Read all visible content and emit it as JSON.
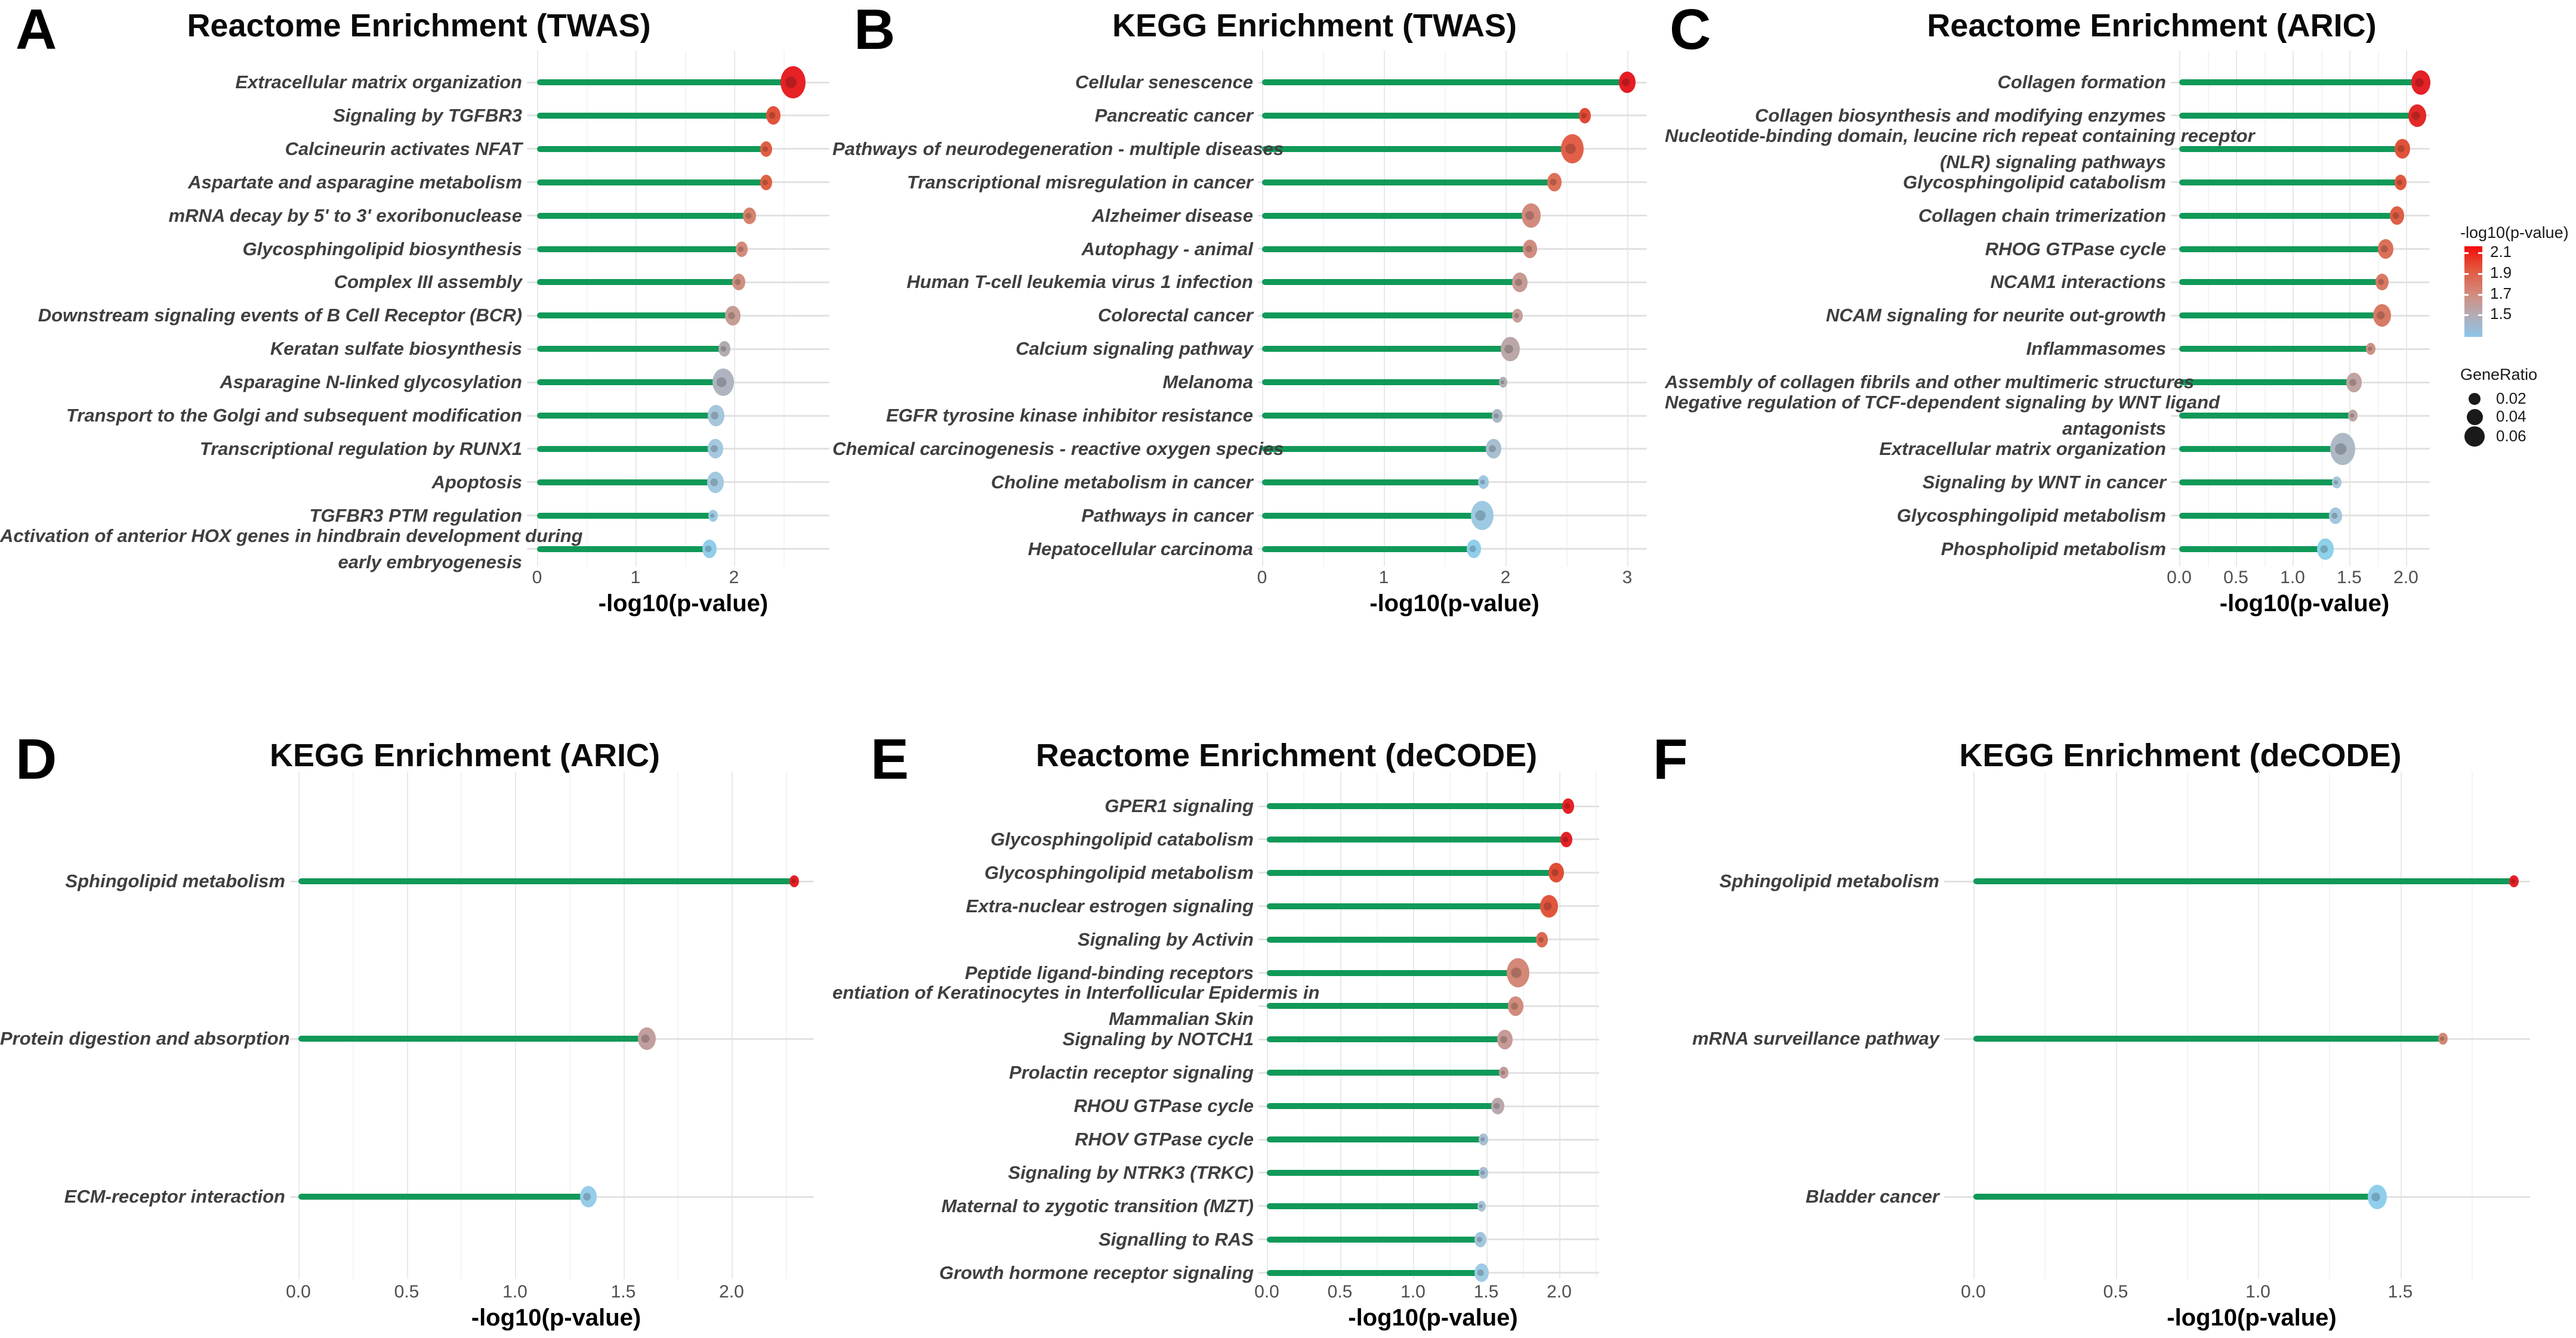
{
  "style": {
    "background": "#ffffff",
    "stem_color": "#109958",
    "row_line_color": "#e2e2e2",
    "grid_major_color": "#e9e9e9",
    "grid_minor_color": "#f4f4f4",
    "label_color": "#3f3f3f",
    "tick_color": "#4f4f4f"
  },
  "legend": {
    "color_title": "-log10(p-value)",
    "color_ticks": [
      "2.1",
      "1.9",
      "1.7",
      "1.5"
    ],
    "gradient_stops": [
      "#f10c0c",
      "#e4563c",
      "#cf8f84",
      "#b9a6ad",
      "#8cc6e9"
    ],
    "size_title": "GeneRatio",
    "size_items": [
      {
        "label": "0.02",
        "d": 20
      },
      {
        "label": "0.04",
        "d": 27
      },
      {
        "label": "0.06",
        "d": 34
      }
    ],
    "dot_color": "#1a1a1a"
  },
  "chart_data": [
    {
      "type": "lollipop",
      "letter": "A",
      "title": "Reactome Enrichment (TWAS)",
      "xlabel": "-log10(p-value)",
      "xlim": [
        0,
        2.97
      ],
      "ticks": [
        {
          "v": 0,
          "label": "0"
        },
        {
          "v": 1,
          "label": "1"
        },
        {
          "v": 2,
          "label": "2"
        }
      ],
      "rows": [
        {
          "label": "Extracellular matrix organization",
          "value": 2.6,
          "color": "#e62225",
          "size": 42
        },
        {
          "label": "Signaling by TGFBR3",
          "value": 2.4,
          "color": "#e1543a",
          "size": 24
        },
        {
          "label": "Calcineurin activates NFAT",
          "value": 2.33,
          "color": "#df5f43",
          "size": 20
        },
        {
          "label": "Aspartate and asparagine metabolism",
          "value": 2.33,
          "color": "#df6045",
          "size": 20
        },
        {
          "label": "mRNA decay by 5' to 3' exoribonuclease",
          "value": 2.16,
          "color": "#d7826e",
          "size": 22
        },
        {
          "label": "Glycosphingolipid biosynthesis",
          "value": 2.08,
          "color": "#d28b7a",
          "size": 20
        },
        {
          "label": "Complex III assembly",
          "value": 2.05,
          "color": "#cf9082",
          "size": 22
        },
        {
          "label": "Downstream signaling events of B Cell Receptor (BCR)",
          "value": 1.99,
          "color": "#c69d94",
          "size": 26
        },
        {
          "label": "Keratan sulfate biosynthesis",
          "value": 1.9,
          "color": "#b3abb2",
          "size": 20
        },
        {
          "label": "Asparagine N-linked glycosylation",
          "value": 1.89,
          "color": "#afb4c0",
          "size": 36
        },
        {
          "label": "Transport to the Golgi and subsequent modification",
          "value": 1.82,
          "color": "#a6c6dc",
          "size": 28
        },
        {
          "label": "Transcriptional regulation by RUNX1",
          "value": 1.81,
          "color": "#a4c8de",
          "size": 26
        },
        {
          "label": "Apoptosis",
          "value": 1.81,
          "color": "#a3c9e0",
          "size": 28
        },
        {
          "label": "TGFBR3 PTM regulation",
          "value": 1.79,
          "color": "#9ccbe4",
          "size": 16
        },
        {
          "label": "Activation of anterior HOX genes in hindbrain development during\nearly embryogenesis",
          "value": 1.75,
          "color": "#92cdea",
          "size": 24
        }
      ]
    },
    {
      "type": "lollipop",
      "letter": "B",
      "title": "KEGG Enrichment (TWAS)",
      "xlabel": "-log10(p-value)",
      "xlim": [
        0,
        3.16
      ],
      "ticks": [
        {
          "v": 0,
          "label": "0"
        },
        {
          "v": 1,
          "label": "1"
        },
        {
          "v": 2,
          "label": "2"
        },
        {
          "v": 3,
          "label": "3"
        }
      ],
      "rows": [
        {
          "label": "Cellular senescence",
          "value": 3.0,
          "color": "#e31d23",
          "size": 28
        },
        {
          "label": "Pancreatic cancer",
          "value": 2.65,
          "color": "#e04a33",
          "size": 20
        },
        {
          "label": "Pathways of neurodegeneration - multiple diseases",
          "value": 2.55,
          "color": "#e2604a",
          "size": 38
        },
        {
          "label": "Transcriptional misregulation in cancer",
          "value": 2.4,
          "color": "#dd7058",
          "size": 24
        },
        {
          "label": "Alzheimer disease",
          "value": 2.21,
          "color": "#d18a7d",
          "size": 32
        },
        {
          "label": "Autophagy - animal",
          "value": 2.2,
          "color": "#cf8d80",
          "size": 24
        },
        {
          "label": "Human T-cell leukemia virus 1 infection",
          "value": 2.12,
          "color": "#c79a94",
          "size": 26
        },
        {
          "label": "Colorectal cancer",
          "value": 2.1,
          "color": "#c49e98",
          "size": 18
        },
        {
          "label": "Calcium signaling pathway",
          "value": 2.04,
          "color": "#bba7a7",
          "size": 32
        },
        {
          "label": "Melanoma",
          "value": 1.98,
          "color": "#b2aeb5",
          "size": 14
        },
        {
          "label": "EGFR tyrosine kinase inhibitor resistance",
          "value": 1.93,
          "color": "#aab6c2",
          "size": 18
        },
        {
          "label": "Chemical carcinogenesis - reactive oxygen species",
          "value": 1.9,
          "color": "#a7bfd0",
          "size": 26
        },
        {
          "label": "Choline metabolism in cancer",
          "value": 1.82,
          "color": "#a0c8e0",
          "size": 18
        },
        {
          "label": "Pathways in cancer",
          "value": 1.81,
          "color": "#9dcae2",
          "size": 38
        },
        {
          "label": "Hepatocellular carcinoma",
          "value": 1.74,
          "color": "#8ecfeb",
          "size": 24
        }
      ]
    },
    {
      "type": "lollipop",
      "letter": "C",
      "title": "Reactome Enrichment (ARIC)",
      "xlabel": "-log10(p-value)",
      "xlim": [
        0,
        2.21
      ],
      "ticks": [
        {
          "v": 0,
          "label": "0.0"
        },
        {
          "v": 0.5,
          "label": "0.5"
        },
        {
          "v": 1,
          "label": "1.0"
        },
        {
          "v": 1.5,
          "label": "1.5"
        },
        {
          "v": 2,
          "label": "2.0"
        }
      ],
      "rows": [
        {
          "label": "Collagen formation",
          "value": 2.13,
          "color": "#e32126",
          "size": 32
        },
        {
          "label": "Collagen biosynthesis and modifying enzymes",
          "value": 2.1,
          "color": "#e22a28",
          "size": 30
        },
        {
          "label": "Nucleotide-binding domain, leucine rich repeat containing receptor\n(NLR) signaling pathways",
          "value": 1.97,
          "color": "#e0523a",
          "size": 26
        },
        {
          "label": "Glycosphingolipid catabolism",
          "value": 1.95,
          "color": "#df573e",
          "size": 20
        },
        {
          "label": "Collagen chain trimerization",
          "value": 1.92,
          "color": "#de5f45",
          "size": 24
        },
        {
          "label": "RHOG GTPase cycle",
          "value": 1.82,
          "color": "#db7058",
          "size": 26
        },
        {
          "label": "NCAM1 interactions",
          "value": 1.79,
          "color": "#d87a64",
          "size": 22
        },
        {
          "label": "NCAM signaling for neurite out-growth",
          "value": 1.79,
          "color": "#d87a64",
          "size": 30
        },
        {
          "label": "Inflammasomes",
          "value": 1.69,
          "color": "#cc9184",
          "size": 16
        },
        {
          "label": "Assembly of collagen fibrils and other multimeric structures",
          "value": 1.54,
          "color": "#bfa4a2",
          "size": 26
        },
        {
          "label": "Negative regulation of TCF-dependent signaling by WNT ligand\nantagonists",
          "value": 1.53,
          "color": "#bca6a6",
          "size": 16
        },
        {
          "label": "Extracellular matrix organization",
          "value": 1.44,
          "color": "#aeb9c6",
          "size": 42
        },
        {
          "label": "Signaling by WNT in cancer",
          "value": 1.39,
          "color": "#a5c5da",
          "size": 16
        },
        {
          "label": "Glycosphingolipid metabolism",
          "value": 1.38,
          "color": "#a3c7dd",
          "size": 22
        },
        {
          "label": "Phospholipid metabolism",
          "value": 1.29,
          "color": "#8fd0ea",
          "size": 28
        }
      ]
    },
    {
      "type": "lollipop",
      "letter": "D",
      "title": "KEGG Enrichment (ARIC)",
      "xlabel": "-log10(p-value)",
      "xlim": [
        0,
        2.38
      ],
      "ticks": [
        {
          "v": 0,
          "label": "0.0"
        },
        {
          "v": 0.5,
          "label": "0.5"
        },
        {
          "v": 1,
          "label": "1.0"
        },
        {
          "v": 1.5,
          "label": "1.5"
        },
        {
          "v": 2,
          "label": "2.0"
        }
      ],
      "rows": [
        {
          "label": "Sphingolipid metabolism",
          "value": 2.29,
          "color": "#e31f24",
          "size": 16
        },
        {
          "label": "Protein digestion and absorption",
          "value": 1.61,
          "color": "#c09f9d",
          "size": 30
        },
        {
          "label": "ECM-receptor interaction",
          "value": 1.34,
          "color": "#97cde8",
          "size": 28
        }
      ]
    },
    {
      "type": "lollipop",
      "letter": "E",
      "title": "Reactome Enrichment (deCODE)",
      "xlabel": "-log10(p-value)",
      "xlim": [
        0,
        2.27
      ],
      "ticks": [
        {
          "v": 0,
          "label": "0.0"
        },
        {
          "v": 0.5,
          "label": "0.5"
        },
        {
          "v": 1,
          "label": "1.0"
        },
        {
          "v": 1.5,
          "label": "1.5"
        },
        {
          "v": 2,
          "label": "2.0"
        }
      ],
      "rows": [
        {
          "label": "GPER1 signaling",
          "value": 2.06,
          "color": "#e32126",
          "size": 20
        },
        {
          "label": "Glycosphingolipid catabolism",
          "value": 2.05,
          "color": "#e32126",
          "size": 20
        },
        {
          "label": "Glycosphingolipid metabolism",
          "value": 1.98,
          "color": "#e14e36",
          "size": 26
        },
        {
          "label": "Extra-nuclear estrogen signaling",
          "value": 1.93,
          "color": "#e0563d",
          "size": 30
        },
        {
          "label": "Signaling by Activin",
          "value": 1.88,
          "color": "#dc6a52",
          "size": 20
        },
        {
          "label": "Peptide ligand-binding receptors",
          "value": 1.72,
          "color": "#d38878",
          "size": 38
        },
        {
          "label": "entiation of Keratinocytes in Interfollicular Epidermis in\nMammalian Skin",
          "value": 1.7,
          "color": "#d18c7d",
          "size": 26
        },
        {
          "label": "Signaling by NOTCH1",
          "value": 1.63,
          "color": "#c79a97",
          "size": 26
        },
        {
          "label": "Prolactin receptor signaling",
          "value": 1.62,
          "color": "#c59d9a",
          "size": 16
        },
        {
          "label": "RHOU GTPase cycle",
          "value": 1.58,
          "color": "#b9a8ab",
          "size": 22
        },
        {
          "label": "RHOV GTPase cycle",
          "value": 1.48,
          "color": "#a8c0d4",
          "size": 16
        },
        {
          "label": "Signaling by NTRK3 (TRKC)",
          "value": 1.48,
          "color": "#a8c0d4",
          "size": 16
        },
        {
          "label": "Maternal to zygotic transition (MZT)",
          "value": 1.47,
          "color": "#a5c3d8",
          "size": 14
        },
        {
          "label": "Signalling to RAS",
          "value": 1.46,
          "color": "#a2c6dc",
          "size": 20
        },
        {
          "label": "Growth hormone receptor signaling",
          "value": 1.47,
          "color": "#9fcbe4",
          "size": 24
        }
      ]
    },
    {
      "type": "lollipop",
      "letter": "F",
      "title": "KEGG Enrichment (deCODE)",
      "xlabel": "-log10(p-value)",
      "xlim": [
        0,
        1.96
      ],
      "ticks": [
        {
          "v": 0,
          "label": "0.0"
        },
        {
          "v": 0.5,
          "label": "0.5"
        },
        {
          "v": 1,
          "label": "1.0"
        },
        {
          "v": 1.5,
          "label": "1.5"
        }
      ],
      "rows": [
        {
          "label": "Sphingolipid metabolism",
          "value": 1.9,
          "color": "#e31f24",
          "size": 16
        },
        {
          "label": "mRNA surveillance pathway",
          "value": 1.65,
          "color": "#d08775",
          "size": 16
        },
        {
          "label": "Bladder cancer",
          "value": 1.42,
          "color": "#90cfec",
          "size": 32
        }
      ]
    }
  ]
}
